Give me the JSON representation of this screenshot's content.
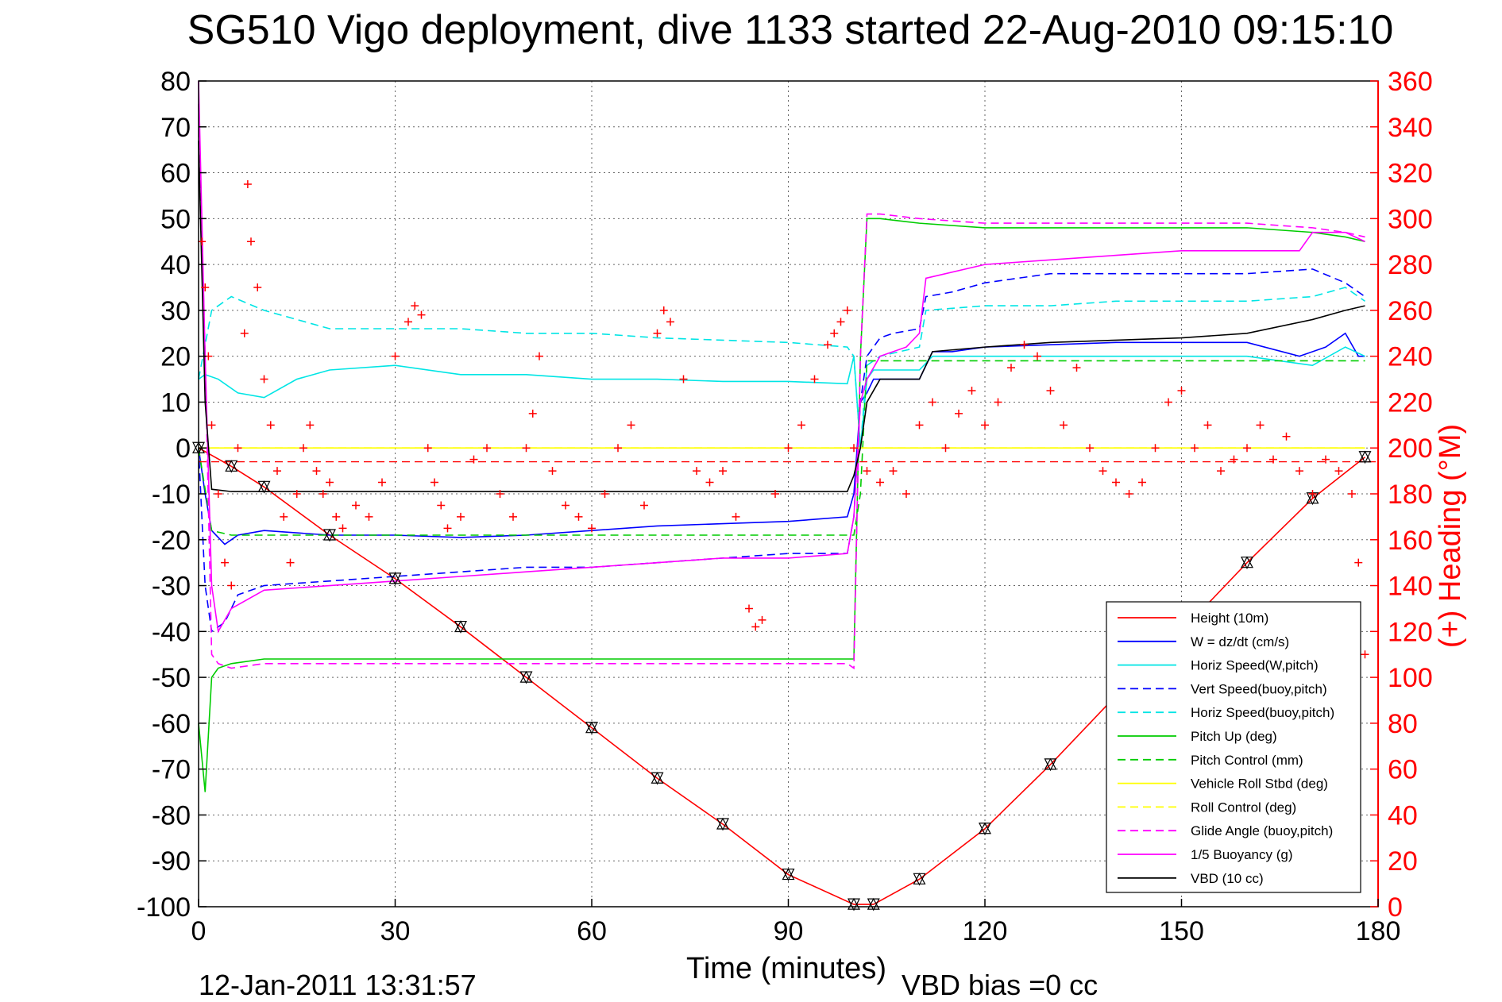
{
  "chart_data": {
    "type": "line",
    "title": "SG510 Vigo deployment, dive 1133 started 22-Aug-2010 09:15:10",
    "xlabel": "Time (minutes)",
    "ylabel_right": "(+) Heading (°M)",
    "footer_left": "12-Jan-2011 13:31:57",
    "footer_right": "VBD bias =0 cc",
    "xlim": [
      0,
      180
    ],
    "ylim": [
      -100,
      80
    ],
    "y2lim": [
      0,
      360
    ],
    "x_ticks": [
      0,
      30,
      60,
      90,
      120,
      150,
      180
    ],
    "y_ticks": [
      80,
      70,
      60,
      50,
      40,
      30,
      20,
      10,
      0,
      -10,
      -20,
      -30,
      -40,
      -50,
      -60,
      -70,
      -80,
      -90,
      -100
    ],
    "y2_ticks": [
      360,
      340,
      320,
      300,
      280,
      260,
      240,
      220,
      200,
      180,
      160,
      140,
      120,
      100,
      80,
      60,
      40,
      20,
      0
    ],
    "grid": true,
    "legend_position": "lower-right",
    "colors": {
      "heading_axis": "#ff0000",
      "red": "#ff0000",
      "blue": "#0000ff",
      "cyan": "#00e5e5",
      "green": "#00cc00",
      "yellow": "#ffff00",
      "magenta": "#ff00ff",
      "black": "#000000"
    },
    "series": [
      {
        "name": "Height (10m)",
        "color": "#ff0000",
        "dash": "solid",
        "x": [
          0,
          5,
          10,
          20,
          30,
          40,
          50,
          60,
          70,
          80,
          90,
          100,
          103,
          110,
          120,
          130,
          140,
          150,
          160,
          170,
          178
        ],
        "y": [
          0,
          -4,
          -8.5,
          -19,
          -28.5,
          -39,
          -50,
          -61,
          -72,
          -82,
          -93,
          -99.5,
          -99.5,
          -94,
          -83,
          -69,
          -54,
          -40,
          -25,
          -11,
          -2
        ]
      },
      {
        "name": "W = dz/dt (cm/s)",
        "color": "#0000ff",
        "dash": "solid",
        "x": [
          0,
          1,
          2,
          4,
          6,
          10,
          20,
          30,
          40,
          50,
          60,
          70,
          80,
          90,
          99,
          100,
          101,
          102,
          103,
          104,
          106,
          110,
          112,
          115,
          120,
          130,
          140,
          150,
          160,
          168,
          172,
          175,
          177,
          178
        ],
        "y": [
          0,
          -10,
          -18,
          -21,
          -19,
          -18,
          -19,
          -19,
          -19.5,
          -19,
          -18,
          -17,
          -16.5,
          -16,
          -15,
          -10,
          10,
          12,
          15,
          15,
          15,
          15,
          21,
          21,
          22,
          22.5,
          23,
          23,
          23,
          20,
          22,
          25,
          20,
          20
        ]
      },
      {
        "name": "Horiz Speed(W,pitch)",
        "color": "#00e5e5",
        "dash": "solid",
        "x": [
          0,
          1,
          3,
          6,
          10,
          15,
          20,
          30,
          40,
          50,
          60,
          70,
          80,
          90,
          99,
          100,
          101,
          102,
          103,
          106,
          110,
          112,
          120,
          130,
          140,
          150,
          160,
          170,
          175,
          178
        ],
        "y": [
          15,
          16,
          15,
          12,
          11,
          15,
          17,
          18,
          16,
          16,
          15,
          15,
          14.5,
          14.5,
          14,
          20,
          0,
          15,
          17,
          17,
          17,
          20,
          20,
          20,
          20,
          20,
          20,
          18,
          22,
          20
        ]
      },
      {
        "name": "Vert Speed(buoy,pitch)",
        "color": "#0000ff",
        "dash": "dashed",
        "x": [
          0,
          1,
          2,
          4,
          6,
          10,
          20,
          30,
          40,
          50,
          60,
          70,
          80,
          90,
          99,
          100,
          101,
          102,
          104,
          106,
          110,
          111,
          115,
          120,
          130,
          140,
          150,
          160,
          170,
          175,
          178
        ],
        "y": [
          0,
          -30,
          -40,
          -38,
          -32,
          -30,
          -29,
          -28,
          -27,
          -26,
          -26,
          -25,
          -24,
          -23,
          -23,
          -15,
          10,
          20,
          24,
          25,
          26,
          33,
          34,
          36,
          38,
          38,
          38,
          38,
          39,
          36,
          33
        ]
      },
      {
        "name": "Horiz Speed(buoy,pitch)",
        "color": "#00e5e5",
        "dash": "dashed",
        "x": [
          0,
          2,
          5,
          10,
          20,
          30,
          40,
          50,
          60,
          70,
          80,
          90,
          99,
          100,
          101,
          102,
          104,
          110,
          111,
          120,
          130,
          140,
          150,
          160,
          170,
          175,
          178
        ],
        "y": [
          15,
          30,
          33,
          30,
          26,
          26,
          26,
          25,
          25,
          24,
          23.5,
          23,
          22,
          20,
          0,
          18,
          20,
          22,
          30,
          31,
          31,
          32,
          32,
          32,
          33,
          35,
          32
        ]
      },
      {
        "name": "Pitch Up (deg)",
        "color": "#00cc00",
        "dash": "solid",
        "x": [
          0,
          1,
          2,
          3,
          5,
          10,
          20,
          30,
          40,
          50,
          60,
          70,
          80,
          90,
          99,
          100,
          101,
          102,
          104,
          110,
          120,
          130,
          140,
          150,
          160,
          170,
          175,
          178
        ],
        "y": [
          -60,
          -75,
          -50,
          -48,
          -47,
          -46,
          -46,
          -46,
          -46,
          -46,
          -46,
          -46,
          -46,
          -46,
          -46,
          -46,
          20,
          50,
          50,
          49,
          48,
          48,
          48,
          48,
          48,
          47,
          46,
          45
        ]
      },
      {
        "name": "Pitch Control (mm)",
        "color": "#00cc00",
        "dash": "dashed",
        "x": [
          0,
          2,
          5,
          10,
          30,
          60,
          90,
          100,
          101,
          102,
          110,
          120,
          150,
          170,
          178
        ],
        "y": [
          0,
          -18,
          -19,
          -19,
          -19,
          -19,
          -19,
          -19,
          -10,
          19,
          19,
          19,
          19,
          19,
          19
        ]
      },
      {
        "name": "Vehicle Roll Stbd (deg)",
        "color": "#ffff00",
        "dash": "solid",
        "x": [
          0,
          10,
          30,
          50,
          70,
          90,
          100,
          110,
          130,
          150,
          170,
          178
        ],
        "y": [
          0,
          0,
          0,
          0,
          0,
          0,
          0,
          0,
          0,
          0,
          0,
          0
        ]
      },
      {
        "name": "Roll Control (deg)",
        "color": "#ffff00",
        "dash": "dashed",
        "x": [
          0,
          30,
          60,
          90,
          120,
          150,
          178
        ],
        "y": [
          0,
          0,
          0,
          0,
          0,
          0,
          0
        ]
      },
      {
        "name": "Glide Angle (buoy,pitch)",
        "color": "#ff00ff",
        "dash": "dashed",
        "x": [
          0,
          1,
          2,
          3,
          5,
          10,
          20,
          30,
          40,
          50,
          60,
          70,
          80,
          90,
          99,
          100,
          101,
          102,
          104,
          110,
          120,
          130,
          140,
          150,
          160,
          170,
          175,
          178
        ],
        "y": [
          75,
          20,
          -45,
          -47,
          -48,
          -47,
          -47,
          -47,
          -47,
          -47,
          -47,
          -47,
          -47,
          -47,
          -47,
          -48,
          20,
          51,
          51,
          50,
          49,
          49,
          49,
          49,
          49,
          48,
          47,
          46
        ]
      },
      {
        "name": "1/5 Buoyancy (g)",
        "color": "#ff00ff",
        "dash": "solid",
        "x": [
          0,
          1,
          2,
          3,
          5,
          10,
          20,
          30,
          40,
          50,
          60,
          70,
          80,
          90,
          99,
          100,
          101,
          102,
          104,
          108,
          110,
          111,
          120,
          130,
          140,
          150,
          160,
          168,
          170,
          175,
          178
        ],
        "y": [
          80,
          20,
          -30,
          -40,
          -35,
          -31,
          -30,
          -29,
          -28,
          -27,
          -26,
          -25,
          -24,
          -24,
          -23,
          -15,
          10,
          15,
          20,
          22,
          25,
          37,
          40,
          41,
          42,
          43,
          43,
          43,
          47,
          47,
          45
        ]
      },
      {
        "name": "VBD (10 cc)",
        "color": "#000000",
        "dash": "solid",
        "x": [
          0,
          1,
          2,
          5,
          10,
          30,
          60,
          90,
          99,
          100,
          101,
          102,
          104,
          110,
          112,
          120,
          130,
          140,
          150,
          160,
          170,
          175,
          178
        ],
        "y": [
          67,
          10,
          -9,
          -9.5,
          -9.5,
          -9.5,
          -9.5,
          -9.5,
          -9.5,
          -6,
          0,
          10,
          15,
          15,
          21,
          22,
          23,
          23.5,
          24,
          25,
          28,
          30,
          31
        ]
      }
    ],
    "heading_points": {
      "name": "(+) Heading",
      "x": [
        0.5,
        1,
        1.5,
        2,
        3,
        4,
        5,
        6,
        7,
        7.5,
        8,
        9,
        10,
        11,
        12,
        13,
        14,
        15,
        16,
        17,
        18,
        19,
        20,
        21,
        22,
        24,
        26,
        28,
        30,
        32,
        33,
        34,
        35,
        36,
        37,
        38,
        40,
        42,
        44,
        46,
        48,
        50,
        51,
        52,
        54,
        56,
        58,
        60,
        62,
        64,
        66,
        68,
        70,
        71,
        72,
        74,
        76,
        78,
        80,
        82,
        84,
        85,
        86,
        88,
        90,
        92,
        94,
        96,
        97,
        98,
        99,
        100,
        102,
        104,
        106,
        108,
        110,
        112,
        114,
        116,
        118,
        120,
        122,
        124,
        126,
        128,
        130,
        132,
        134,
        136,
        138,
        140,
        142,
        144,
        146,
        148,
        150,
        152,
        154,
        156,
        158,
        160,
        162,
        164,
        166,
        168,
        170,
        172,
        174,
        176,
        177,
        178
      ],
      "y": [
        290,
        270,
        240,
        210,
        180,
        150,
        140,
        200,
        250,
        315,
        290,
        270,
        230,
        210,
        190,
        170,
        150,
        180,
        200,
        210,
        190,
        180,
        185,
        170,
        165,
        175,
        170,
        185,
        240,
        255,
        262,
        258,
        200,
        185,
        175,
        165,
        170,
        195,
        200,
        180,
        170,
        200,
        215,
        240,
        190,
        175,
        170,
        165,
        180,
        200,
        210,
        175,
        250,
        260,
        255,
        230,
        190,
        185,
        190,
        170,
        130,
        122,
        125,
        180,
        200,
        210,
        230,
        245,
        250,
        255,
        260,
        200,
        190,
        185,
        190,
        180,
        210,
        220,
        200,
        215,
        225,
        210,
        220,
        235,
        245,
        240,
        225,
        210,
        235,
        200,
        190,
        185,
        180,
        185,
        200,
        220,
        225,
        200,
        210,
        190,
        195,
        200,
        210,
        195,
        205,
        190,
        180,
        195,
        190,
        180,
        150,
        110
      ]
    }
  }
}
